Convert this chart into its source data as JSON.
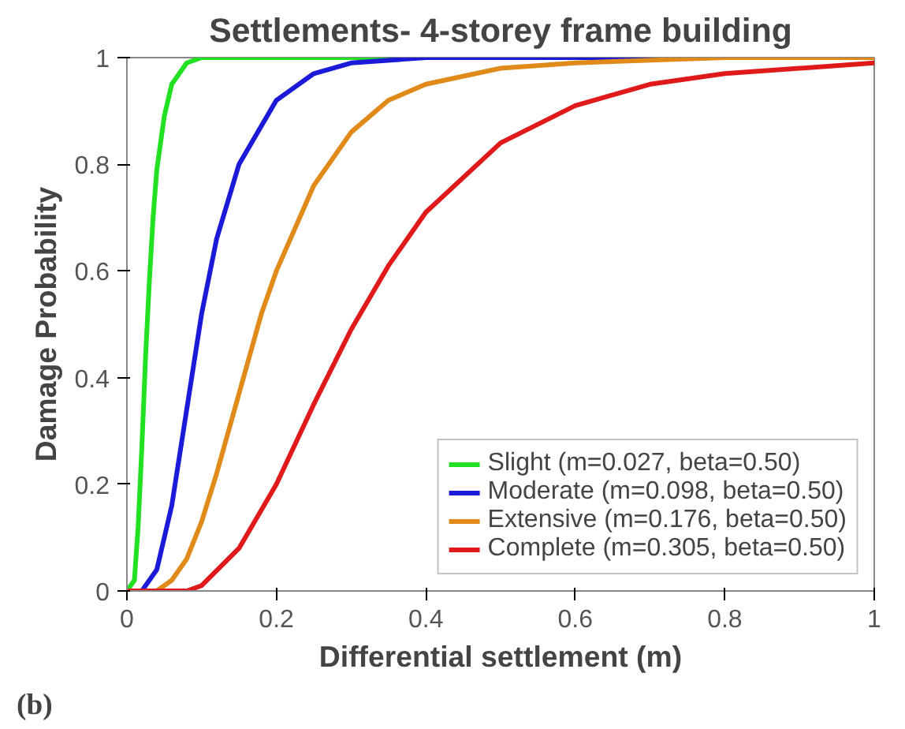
{
  "chart_data": {
    "type": "line",
    "title": "Settlements- 4-storey frame building",
    "xlabel": "Differential settlement (m)",
    "ylabel": "Damage Probability",
    "annotations": [
      "(b)"
    ],
    "xlim": [
      0,
      1
    ],
    "ylim": [
      0,
      1
    ],
    "xticks": [
      0,
      0.2,
      0.4,
      0.6,
      0.8,
      1
    ],
    "yticks": [
      0,
      0.2,
      0.4,
      0.6,
      0.8,
      1
    ],
    "grid": false,
    "legend": "bottom right",
    "line_style": "solid",
    "series": [
      {
        "name": "Slight (m=0.027, beta=0.50)",
        "color": "#22e022",
        "x": [
          0,
          0.01,
          0.015,
          0.02,
          0.025,
          0.03,
          0.035,
          0.04,
          0.05,
          0.06,
          0.08,
          0.1,
          1
        ],
        "values": [
          0,
          0.02,
          0.12,
          0.27,
          0.44,
          0.58,
          0.7,
          0.79,
          0.89,
          0.95,
          0.99,
          1,
          1
        ]
      },
      {
        "name": "Moderate (m=0.098, beta=0.50)",
        "color": "#1a1ad8",
        "x": [
          0,
          0.02,
          0.04,
          0.06,
          0.08,
          0.1,
          0.12,
          0.15,
          0.2,
          0.25,
          0.3,
          0.4,
          1
        ],
        "values": [
          0,
          0,
          0.04,
          0.16,
          0.34,
          0.52,
          0.66,
          0.8,
          0.92,
          0.97,
          0.99,
          1,
          1
        ]
      },
      {
        "name": "Extensive (m=0.176, beta=0.50)",
        "color": "#e08a1a",
        "x": [
          0,
          0.04,
          0.06,
          0.08,
          0.1,
          0.12,
          0.15,
          0.18,
          0.2,
          0.25,
          0.3,
          0.35,
          0.4,
          0.5,
          0.6,
          0.8,
          1
        ],
        "values": [
          0,
          0,
          0.02,
          0.06,
          0.13,
          0.22,
          0.37,
          0.52,
          0.6,
          0.76,
          0.86,
          0.92,
          0.95,
          0.98,
          0.99,
          1,
          1
        ]
      },
      {
        "name": "Complete (m=0.305, beta=0.50)",
        "color": "#e01a1a",
        "x": [
          0,
          0.05,
          0.08,
          0.1,
          0.15,
          0.2,
          0.25,
          0.3,
          0.35,
          0.4,
          0.5,
          0.6,
          0.7,
          0.8,
          0.9,
          1
        ],
        "values": [
          0,
          0,
          0,
          0.01,
          0.08,
          0.2,
          0.35,
          0.49,
          0.61,
          0.71,
          0.84,
          0.91,
          0.95,
          0.97,
          0.98,
          0.99
        ]
      }
    ]
  }
}
